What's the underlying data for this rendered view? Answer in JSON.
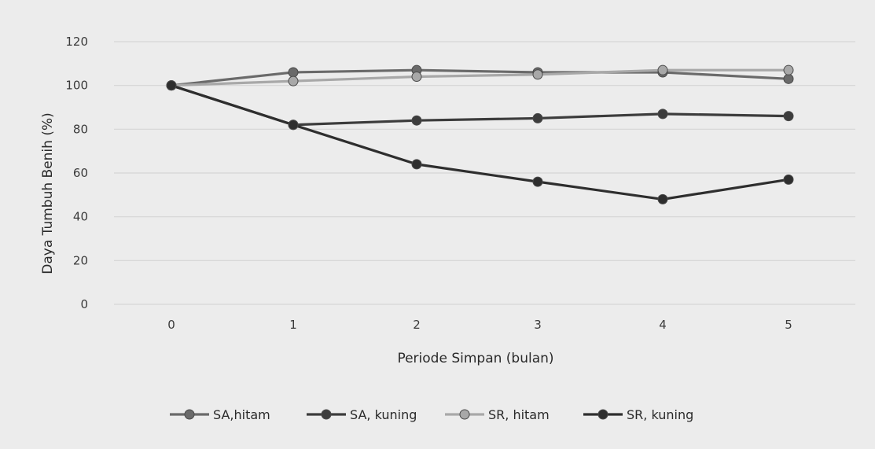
{
  "chart_data": {
    "type": "line",
    "title": "",
    "xlabel": "Periode Simpan (bulan)",
    "ylabel": "Daya Tumbuh Benih (%)",
    "x": [
      0,
      1,
      2,
      3,
      4,
      5
    ],
    "x_tick_labels": [
      "0",
      "1",
      "2",
      "3",
      "4",
      "5"
    ],
    "ylim": [
      0,
      120
    ],
    "y_ticks": [
      0,
      20,
      40,
      60,
      80,
      100,
      120
    ],
    "y_tick_labels": [
      "0",
      "20",
      "40",
      "60",
      "80",
      "100",
      "120"
    ],
    "grid": "horizontal",
    "legend_position": "bottom",
    "series": [
      {
        "name": "SA,hitam",
        "color": "#6a6a6a",
        "values": [
          100,
          106,
          107,
          106,
          106,
          103
        ]
      },
      {
        "name": "SA, kuning",
        "color": "#3c3c3c",
        "values": [
          100,
          82,
          84,
          85,
          87,
          86
        ]
      },
      {
        "name": "SR, hitam",
        "color": "#a8a8a8",
        "values": [
          100,
          102,
          104,
          105,
          107,
          107
        ]
      },
      {
        "name": "SR, kuning",
        "color": "#2e2e2e",
        "values": [
          100,
          82,
          64,
          56,
          48,
          57
        ]
      }
    ]
  }
}
